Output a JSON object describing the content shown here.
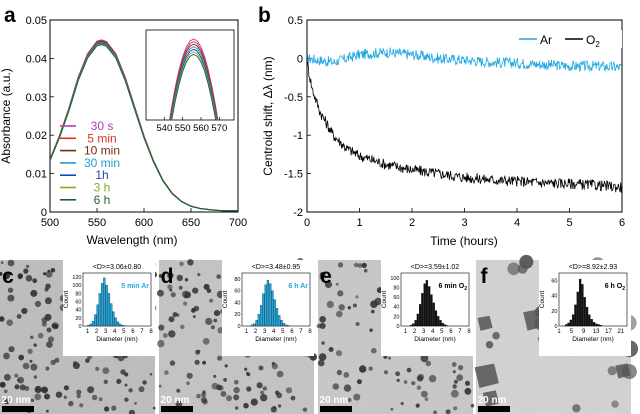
{
  "panels": {
    "a": {
      "letter": "a",
      "chart_data": {
        "type": "line",
        "xlabel": "Wavelength (nm)",
        "ylabel": "Absorbance (a.u.)",
        "xlim": [
          500,
          700
        ],
        "ylim": [
          0,
          0.05
        ],
        "x_ticks": [
          "500",
          "550",
          "600",
          "650",
          "700"
        ],
        "y_ticks": [
          "0",
          "0.01",
          "0.02",
          "0.03",
          "0.04",
          "0.05"
        ],
        "x": [
          500,
          510,
          520,
          530,
          540,
          550,
          555,
          560,
          570,
          580,
          590,
          600,
          610,
          620,
          630,
          640,
          650,
          660,
          670,
          680,
          690,
          700
        ],
        "base_values": [
          0.0135,
          0.0195,
          0.0265,
          0.0345,
          0.0405,
          0.0437,
          0.044,
          0.0436,
          0.0405,
          0.0345,
          0.027,
          0.0195,
          0.0132,
          0.0082,
          0.0048,
          0.0027,
          0.0015,
          0.0009,
          0.0006,
          0.0004,
          0.0003,
          0.0003
        ],
        "series": [
          {
            "name": "30 s",
            "color": "#b040b0",
            "peak": 0.0448
          },
          {
            "name": "5 min",
            "color": "#e03020",
            "peak": 0.0446
          },
          {
            "name": "10 min",
            "color": "#7a2a10",
            "peak": 0.0444
          },
          {
            "name": "30 min",
            "color": "#20a0c8",
            "peak": 0.0442
          },
          {
            "name": "1h",
            "color": "#2040c0",
            "peak": 0.044
          },
          {
            "name": "3 h",
            "color": "#80b020",
            "peak": 0.0438
          },
          {
            "name": "6 h",
            "color": "#206030",
            "peak": 0.0436
          }
        ],
        "inset": {
          "xlim": [
            530,
            578
          ],
          "x_ticks": [
            "540",
            "550",
            "560",
            "570"
          ]
        },
        "legend_placement": "bottom-left"
      }
    },
    "b": {
      "letter": "b",
      "chart_data": {
        "type": "line",
        "xlabel": "Time (hours)",
        "ylabel": "Centroid shift, Δλ (nm)",
        "xlim": [
          0,
          6
        ],
        "ylim": [
          -2,
          0.5
        ],
        "x_ticks": [
          "0",
          "1",
          "2",
          "3",
          "4",
          "5",
          "6"
        ],
        "y_ticks": [
          "0.5",
          "0",
          "-0.5",
          "-1",
          "-1.5",
          "-2"
        ],
        "series": [
          {
            "name": "Ar",
            "color": "#20a8e0",
            "x": [
              0,
              0.5,
              1,
              1.5,
              2,
              2.5,
              3,
              3.5,
              4,
              4.5,
              5,
              5.5,
              6
            ],
            "values": [
              0.0,
              -0.05,
              0.05,
              0.08,
              0.05,
              0.0,
              -0.02,
              -0.05,
              -0.06,
              -0.08,
              -0.1,
              -0.1,
              -0.12
            ]
          },
          {
            "name": "O",
            "subscript": "2",
            "color": "#000000",
            "x": [
              0,
              0.1,
              0.25,
              0.5,
              0.75,
              1,
              1.5,
              2,
              2.5,
              3,
              3.5,
              4,
              4.5,
              5,
              5.5,
              6
            ],
            "values": [
              -0.05,
              -0.4,
              -0.7,
              -1.0,
              -1.17,
              -1.27,
              -1.38,
              -1.45,
              -1.5,
              -1.55,
              -1.58,
              -1.6,
              -1.62,
              -1.63,
              -1.65,
              -1.68
            ]
          }
        ],
        "legend_placement": "top-right"
      }
    },
    "c": {
      "letter": "c",
      "scale_bar": "20 nm",
      "histogram": {
        "type": "bar",
        "stat": "<D>=3.06±0.80",
        "condition": "5 min Ar",
        "color": "#20a8e0",
        "xlabel": "Diameter (nm)",
        "ylabel": "Count",
        "x_ticks": [
          "1",
          "2",
          "3",
          "4",
          "5",
          "6",
          "7",
          "8"
        ],
        "y_ticks": [
          "0",
          "20",
          "40",
          "60",
          "80",
          "100",
          "120"
        ],
        "ylim": [
          0,
          130
        ],
        "xlim": [
          0.5,
          8
        ],
        "bin_start": 1.0,
        "bin_width": 0.25,
        "values": [
          2,
          5,
          12,
          28,
          52,
          80,
          105,
          118,
          100,
          80,
          55,
          35,
          20,
          10,
          5,
          2,
          1
        ]
      }
    },
    "d": {
      "letter": "d",
      "scale_bar": "20 nm",
      "histogram": {
        "type": "bar",
        "stat": "<D>=3.48±0.95",
        "condition": "6 h Ar",
        "color": "#20a8e0",
        "xlabel": "Diameter (nm)",
        "ylabel": "Count",
        "x_ticks": [
          "1",
          "2",
          "3",
          "4",
          "5",
          "6",
          "7",
          "8"
        ],
        "y_ticks": [
          "0",
          "20",
          "40",
          "60",
          "80"
        ],
        "ylim": [
          0,
          90
        ],
        "xlim": [
          0.5,
          8
        ],
        "bin_start": 1.5,
        "bin_width": 0.25,
        "values": [
          2,
          4,
          10,
          20,
          35,
          55,
          70,
          78,
          72,
          60,
          45,
          30,
          18,
          10,
          5,
          2,
          1
        ]
      }
    },
    "e": {
      "letter": "e",
      "scale_bar": "20 nm",
      "histogram": {
        "type": "bar",
        "stat": "<D>=3.59±1.02",
        "condition": "6 min O",
        "condition_sub": "2",
        "color": "#111111",
        "xlabel": "Diameter (nm)",
        "ylabel": "Count",
        "x_ticks": [
          "1",
          "2",
          "3",
          "4",
          "5",
          "6",
          "7",
          "8"
        ],
        "y_ticks": [
          "0",
          "20",
          "40",
          "60",
          "80",
          "100"
        ],
        "ylim": [
          0,
          110
        ],
        "xlim": [
          0.5,
          8
        ],
        "bin_start": 1.5,
        "bin_width": 0.25,
        "values": [
          2,
          5,
          12,
          25,
          45,
          68,
          88,
          95,
          82,
          65,
          48,
          32,
          20,
          12,
          6,
          3,
          1
        ]
      }
    },
    "f": {
      "letter": "f",
      "scale_bar": "20 nm",
      "histogram": {
        "type": "bar",
        "stat": "<D>=8.92±2.93",
        "condition": "6 h O",
        "condition_sub": "2",
        "color": "#111111",
        "xlabel": "Diameter (nm)",
        "ylabel": "Count",
        "x_ticks": [
          "1",
          "5",
          "9",
          "13",
          "17",
          "21"
        ],
        "y_ticks": [
          "0",
          "20",
          "40",
          "60"
        ],
        "ylim": [
          0,
          70
        ],
        "xlim": [
          1,
          23
        ],
        "bin_start": 3,
        "bin_width": 0.75,
        "values": [
          2,
          4,
          8,
          15,
          28,
          45,
          62,
          55,
          38,
          25,
          15,
          9,
          5,
          3,
          2,
          1
        ]
      }
    }
  }
}
